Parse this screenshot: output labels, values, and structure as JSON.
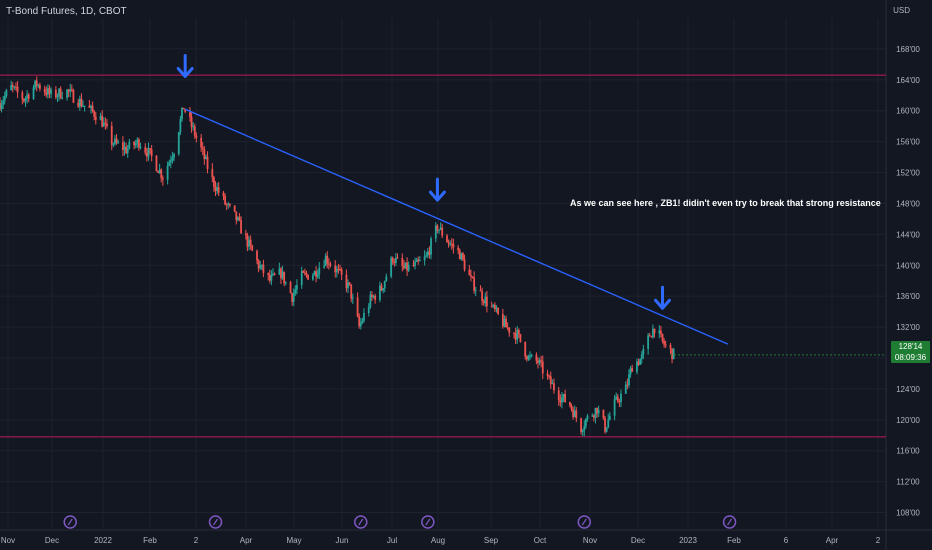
{
  "header": {
    "title": "T-Bond Futures, 1D, CBOT",
    "currency": "USD"
  },
  "last_price": {
    "value": "128'14",
    "countdown": "08:09:36"
  },
  "annotation": {
    "text": "As we can see here , ZB1! didin't even try to break that strong resistance"
  },
  "colors": {
    "background": "#131722",
    "up": "#26a69a",
    "down": "#ef5350",
    "trendline": "#2962ff",
    "arrow": "#2f6bff",
    "horizontal": "#c2185b",
    "grid": "#1e222d",
    "price_tag": "#1e7d32"
  },
  "chart_data": {
    "type": "candlestick",
    "title": "T-Bond Futures, 1D, CBOT",
    "ylim": [
      106,
      172
    ],
    "y_ticks": [
      "108'00",
      "112'00",
      "116'00",
      "120'00",
      "124'00",
      "128'00",
      "132'00",
      "136'00",
      "140'00",
      "144'00",
      "148'00",
      "152'00",
      "156'00",
      "160'00",
      "164'00",
      "168'00"
    ],
    "x_ticks": [
      "Nov",
      "Dec",
      "2022",
      "Feb",
      "2",
      "Apr",
      "May",
      "Jun",
      "Jul",
      "Aug",
      "Sep",
      "Oct",
      "Nov",
      "Dec",
      "2023",
      "Feb",
      "6",
      "Apr",
      "2"
    ],
    "x_domain": [
      "2021-11-01",
      "2023-05-10"
    ],
    "close_path": [
      [
        "2021-11-01",
        161
      ],
      [
        "2021-11-08",
        163
      ],
      [
        "2021-11-16",
        161.5
      ],
      [
        "2021-11-24",
        163.5
      ],
      [
        "2021-12-03",
        162
      ],
      [
        "2021-12-13",
        162.5
      ],
      [
        "2021-12-22",
        161
      ],
      [
        "2022-01-03",
        159
      ],
      [
        "2022-01-10",
        156
      ],
      [
        "2022-01-19",
        155
      ],
      [
        "2022-01-27",
        156
      ],
      [
        "2022-02-04",
        154
      ],
      [
        "2022-02-11",
        151.5
      ],
      [
        "2022-02-18",
        155
      ],
      [
        "2022-02-24",
        160.5
      ],
      [
        "2022-03-01",
        158
      ],
      [
        "2022-03-07",
        155
      ],
      [
        "2022-03-14",
        151
      ],
      [
        "2022-03-22",
        148
      ],
      [
        "2022-03-29",
        146
      ],
      [
        "2022-04-05",
        143
      ],
      [
        "2022-04-12",
        140
      ],
      [
        "2022-04-19",
        138
      ],
      [
        "2022-04-26",
        139
      ],
      [
        "2022-05-03",
        136
      ],
      [
        "2022-05-09",
        138.5
      ],
      [
        "2022-05-17",
        139
      ],
      [
        "2022-05-24",
        141
      ],
      [
        "2022-06-01",
        139
      ],
      [
        "2022-06-08",
        137
      ],
      [
        "2022-06-14",
        132
      ],
      [
        "2022-06-21",
        135.5
      ],
      [
        "2022-06-28",
        137
      ],
      [
        "2022-07-05",
        141
      ],
      [
        "2022-07-12",
        139.5
      ],
      [
        "2022-07-20",
        140
      ],
      [
        "2022-07-26",
        141
      ],
      [
        "2022-08-02",
        145
      ],
      [
        "2022-08-09",
        143
      ],
      [
        "2022-08-16",
        141.5
      ],
      [
        "2022-08-23",
        138
      ],
      [
        "2022-08-30",
        136
      ],
      [
        "2022-09-07",
        134
      ],
      [
        "2022-09-14",
        132
      ],
      [
        "2022-09-21",
        131
      ],
      [
        "2022-09-28",
        128
      ],
      [
        "2022-10-04",
        127.5
      ],
      [
        "2022-10-11",
        125
      ],
      [
        "2022-10-18",
        123
      ],
      [
        "2022-10-24",
        122
      ],
      [
        "2022-10-31",
        119
      ],
      [
        "2022-11-03",
        120
      ],
      [
        "2022-11-10",
        121.5
      ],
      [
        "2022-11-15",
        119
      ],
      [
        "2022-11-21",
        122
      ],
      [
        "2022-11-28",
        124
      ],
      [
        "2022-12-02",
        127
      ],
      [
        "2022-12-08",
        128
      ],
      [
        "2022-12-13",
        131
      ],
      [
        "2022-12-16",
        132
      ],
      [
        "2022-12-21",
        130
      ],
      [
        "2022-12-28",
        128.4
      ]
    ],
    "series": [
      {
        "type": "horizontal_line",
        "value": 164.6
      },
      {
        "type": "horizontal_line",
        "value": 117.8
      },
      {
        "type": "trendline",
        "points": [
          [
            "2022-02-25",
            160.2
          ],
          [
            "2023-01-31",
            129.8
          ]
        ]
      }
    ],
    "markers": [
      {
        "shape": "down-arrow",
        "date": "2022-02-25",
        "price": 165.6
      },
      {
        "shape": "down-arrow",
        "date": "2022-08-02",
        "price": 149.6
      },
      {
        "shape": "down-arrow",
        "date": "2022-12-21",
        "price": 135.6
      }
    ],
    "event_markers": [
      "2021-12-15",
      "2022-03-16",
      "2022-06-15",
      "2022-07-27",
      "2022-11-02",
      "2023-02-01"
    ]
  }
}
